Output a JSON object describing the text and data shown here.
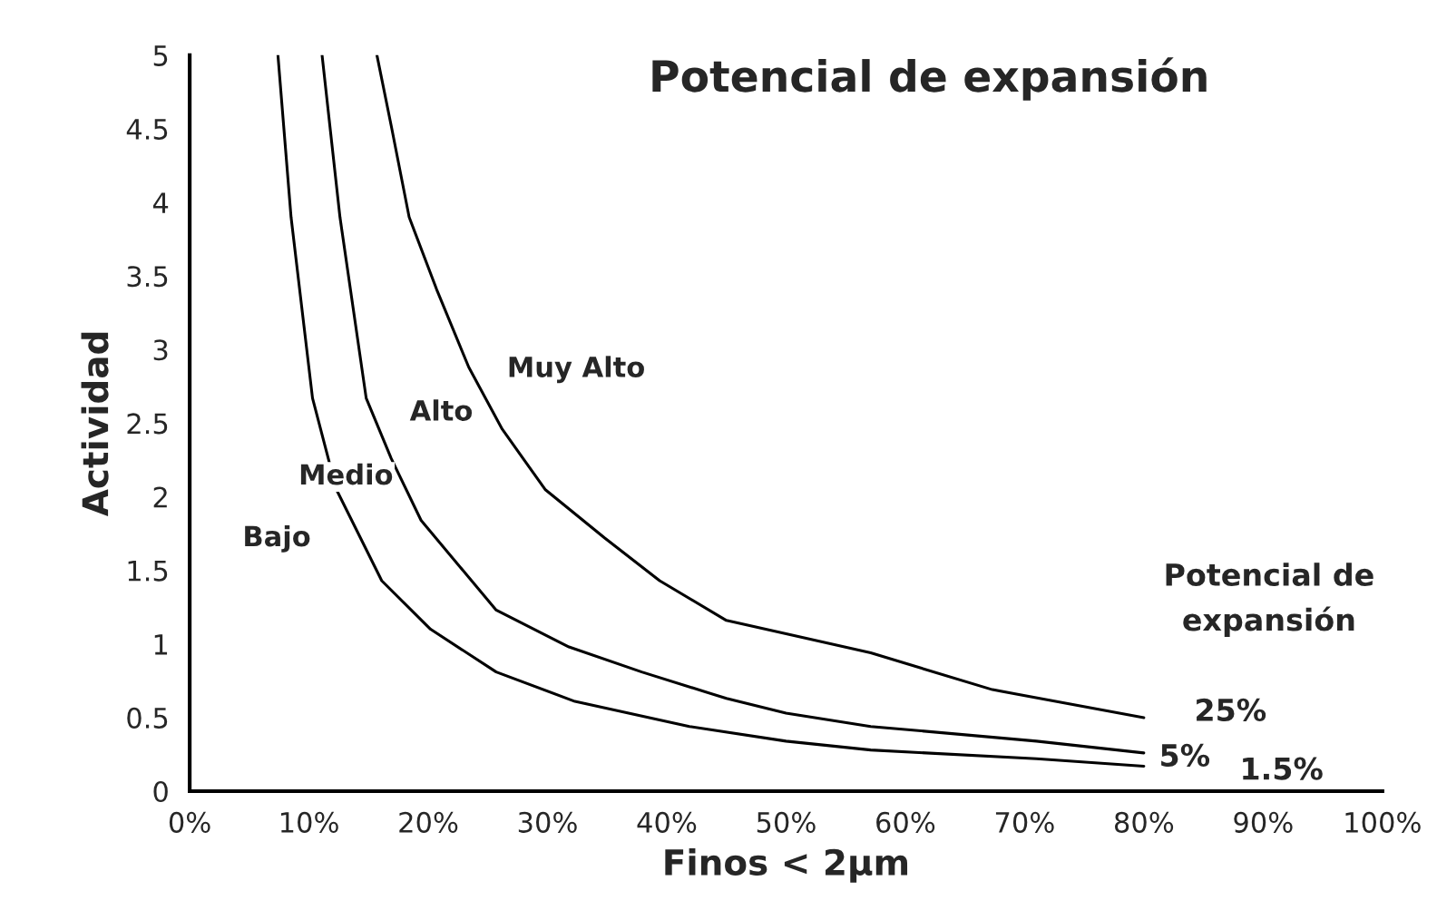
{
  "chart_data": {
    "type": "line",
    "title": "Potencial de expansión",
    "xlabel": "Finos < 2µm",
    "ylabel": "Actividad",
    "legend_title": "Potencial de\nexpansión",
    "series": [
      {
        "name": "1.5%",
        "color": "#000000",
        "x": [
          7.4,
          8.5,
          10.3,
          12.3,
          16.1,
          20.2,
          25.7,
          32.3,
          41.9,
          50,
          57.1,
          71,
          80
        ],
        "values": [
          5,
          3.9,
          2.67,
          2.05,
          1.43,
          1.1,
          0.81,
          0.61,
          0.44,
          0.34,
          0.28,
          0.22,
          0.17
        ]
      },
      {
        "name": "5%",
        "color": "#000000",
        "x": [
          11.1,
          12.6,
          14.8,
          16.9,
          19.4,
          25.7,
          31.8,
          37.9,
          45,
          50,
          57.1,
          71,
          80
        ],
        "values": [
          5,
          3.9,
          2.67,
          2.26,
          1.84,
          1.23,
          0.98,
          0.81,
          0.63,
          0.53,
          0.44,
          0.34,
          0.26
        ]
      },
      {
        "name": "25%",
        "color": "#000000",
        "x": [
          15.7,
          16.9,
          18.4,
          20.7,
          23.4,
          26.2,
          29.8,
          34.8,
          39.4,
          45,
          50,
          57.1,
          67.3,
          80
        ],
        "values": [
          5,
          4.52,
          3.9,
          3.41,
          2.88,
          2.46,
          2.05,
          1.72,
          1.43,
          1.16,
          1.07,
          0.94,
          0.69,
          0.5
        ]
      }
    ],
    "annotations": [
      "Bajo",
      "Medio",
      "Alto",
      "Muy Alto"
    ],
    "xlim": [
      0,
      100
    ],
    "ylim": [
      0,
      5
    ],
    "xticks": [
      {
        "value": 0,
        "label": "0%"
      },
      {
        "value": 10,
        "label": "10%"
      },
      {
        "value": 20,
        "label": "20%"
      },
      {
        "value": 30,
        "label": "30%"
      },
      {
        "value": 40,
        "label": "40%"
      },
      {
        "value": 50,
        "label": "50%"
      },
      {
        "value": 60,
        "label": "60%"
      },
      {
        "value": 70,
        "label": "70%"
      },
      {
        "value": 80,
        "label": "80%"
      },
      {
        "value": 90,
        "label": "90%"
      },
      {
        "value": 100,
        "label": "100%"
      }
    ],
    "yticks": [
      0,
      0.5,
      1,
      1.5,
      2,
      2.5,
      3,
      3.5,
      4,
      4.5,
      5
    ],
    "grid": false,
    "legend": false,
    "marker": "none",
    "line_style": "solid"
  }
}
